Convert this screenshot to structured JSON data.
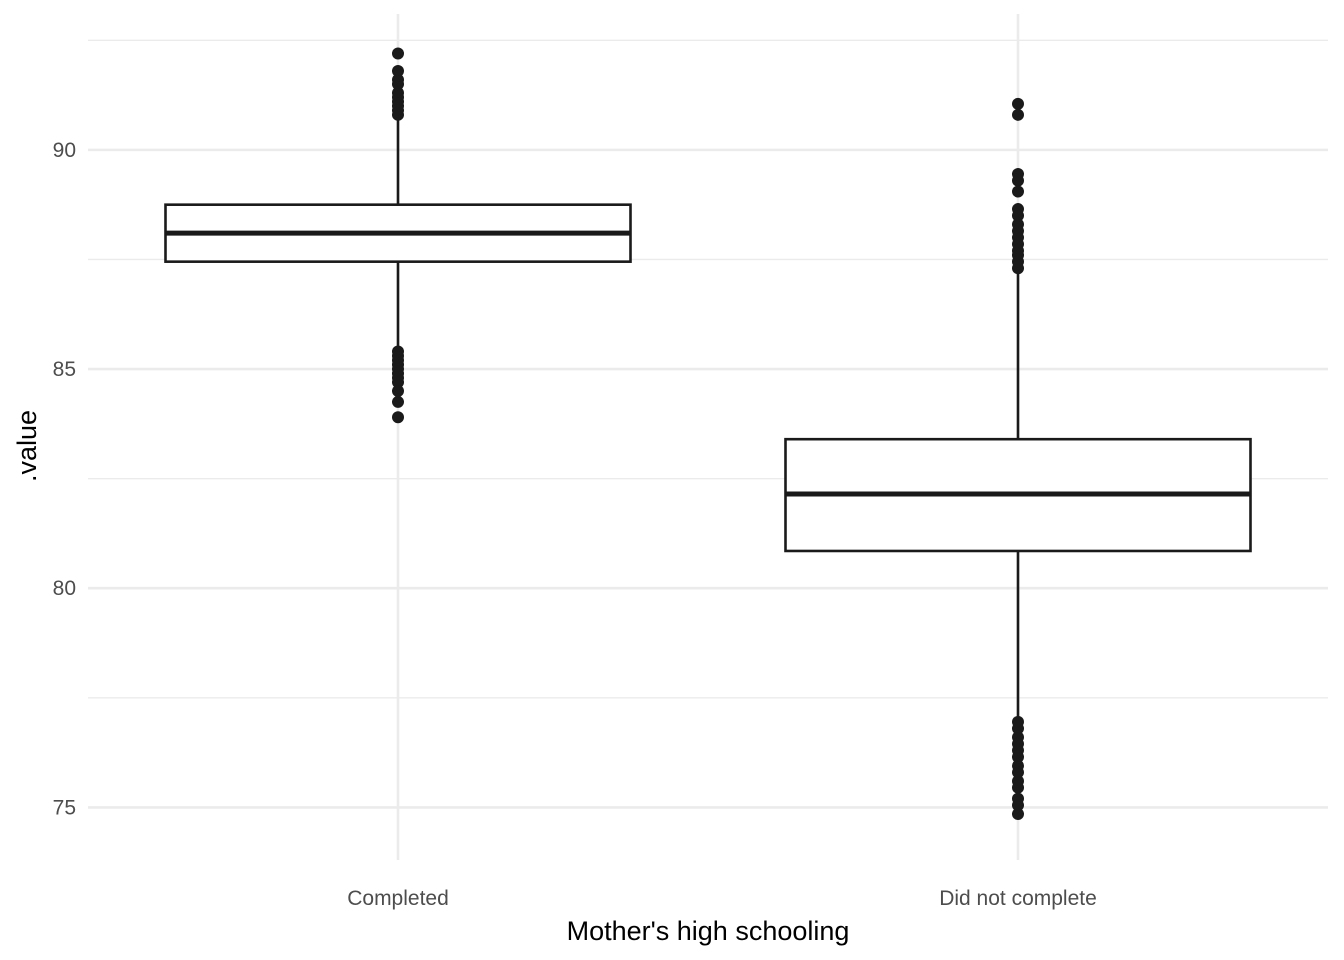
{
  "chart_data": {
    "type": "boxplot",
    "xlabel": "Mother's high schooling",
    "ylabel": ".value",
    "categories": [
      "Completed",
      "Did not complete"
    ],
    "ylim": [
      73.8,
      93.1
    ],
    "yticks": [
      75,
      80,
      85,
      90
    ],
    "yminor": [
      77.5,
      82.5,
      87.5,
      92.5
    ],
    "grid": true,
    "legend": "none",
    "boxes": [
      {
        "category": "Completed",
        "whisker_low": 85.45,
        "q1": 87.45,
        "median": 88.1,
        "q3": 88.75,
        "whisker_high": 90.8,
        "outliers": [
          92.2,
          91.8,
          91.6,
          91.5,
          91.3,
          91.2,
          91.1,
          91.0,
          90.9,
          90.8,
          85.4,
          85.3,
          85.2,
          85.1,
          85.0,
          84.9,
          84.8,
          84.7,
          84.5,
          84.25,
          83.9
        ]
      },
      {
        "category": "Did not complete",
        "whisker_low": 77.0,
        "q1": 80.85,
        "median": 82.15,
        "q3": 83.4,
        "whisker_high": 87.3,
        "outliers": [
          91.05,
          90.8,
          89.45,
          89.3,
          89.05,
          88.65,
          88.5,
          88.3,
          88.15,
          88.0,
          87.85,
          87.7,
          87.6,
          87.45,
          87.3,
          76.95,
          76.8,
          76.6,
          76.45,
          76.3,
          76.15,
          75.95,
          75.8,
          75.6,
          75.45,
          75.2,
          75.05,
          74.85
        ]
      }
    ]
  },
  "colors": {
    "box_stroke": "#1a1a1a",
    "grid": "#ebebeb",
    "tick_text": "#4d4d4d"
  }
}
